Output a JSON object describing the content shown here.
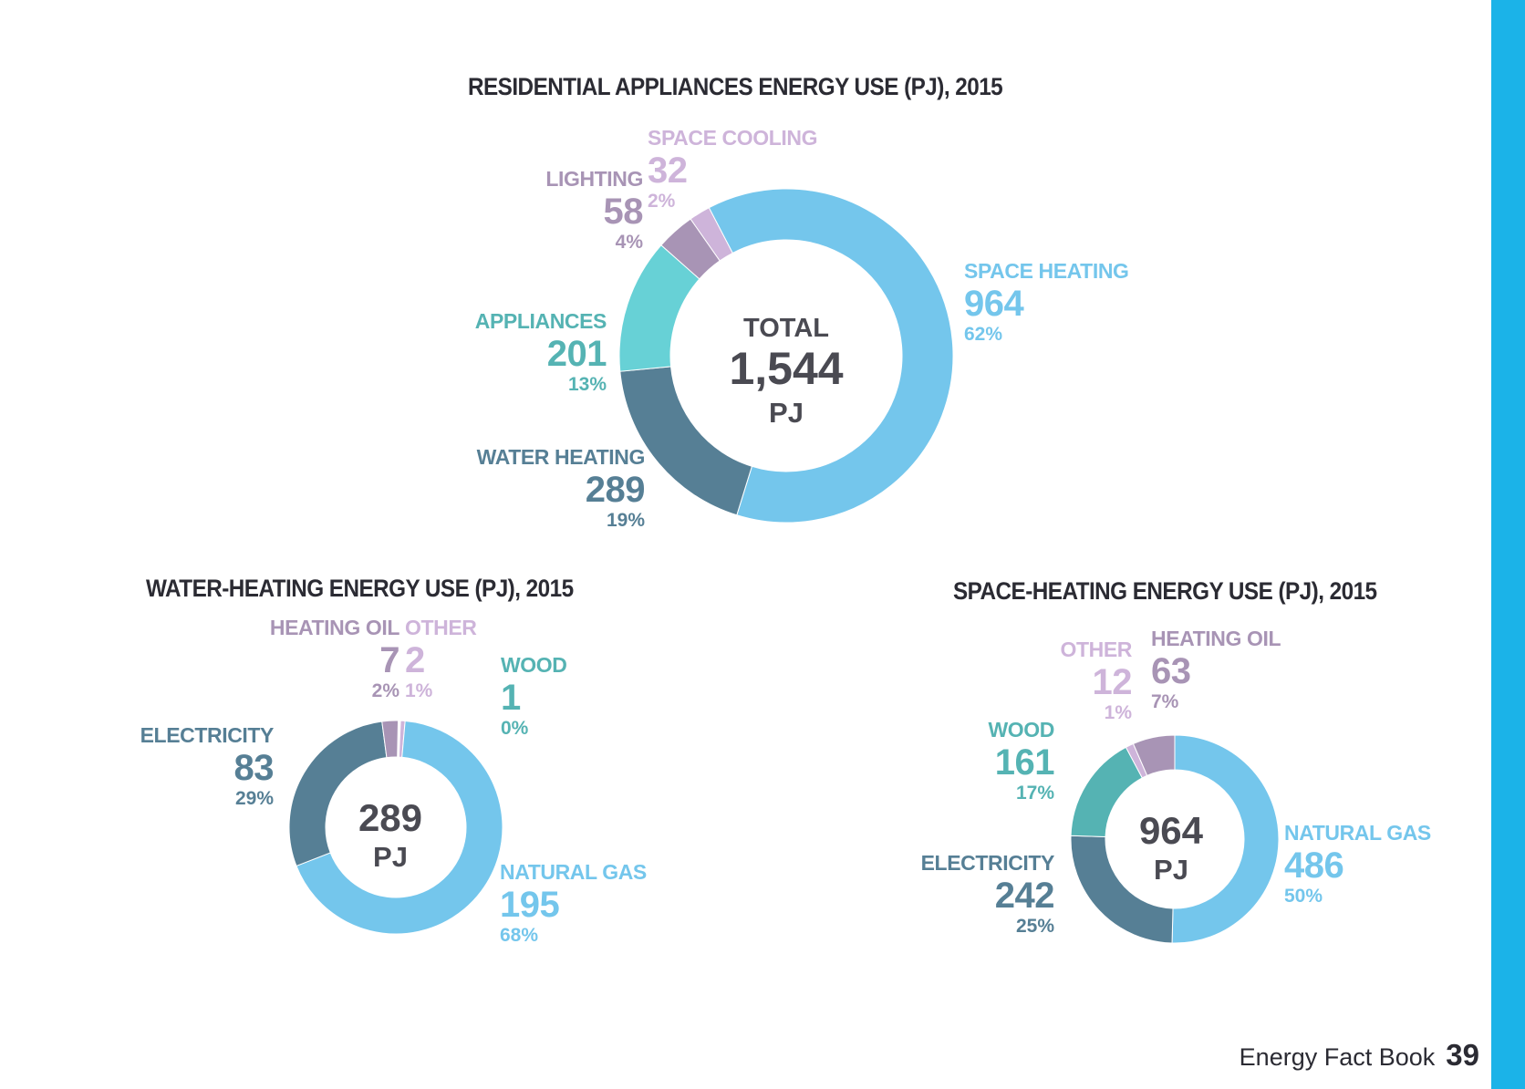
{
  "colors": {
    "sky": "#74c6ec",
    "teal_dark": "#567f95",
    "aqua": "#67d1d6",
    "mauve": "#a894b5",
    "lilac": "#ceb4da",
    "green_teal": "#55b3b3",
    "accent_bar": "#1bb3e8",
    "title": "#2b2b33"
  },
  "footer": {
    "book": "Energy Fact Book",
    "page": "39"
  },
  "chart_data": [
    {
      "type": "pie",
      "title": "RESIDENTIAL APPLIANCES ENERGY USE (PJ), 2015",
      "center": {
        "line1": "TOTAL",
        "line2": "1,544",
        "line3": "PJ"
      },
      "slices": [
        {
          "label": "SPACE HEATING",
          "value": 964,
          "pct": "62%",
          "color": "#74c6ec"
        },
        {
          "label": "WATER HEATING",
          "value": 289,
          "pct": "19%",
          "color": "#567f95"
        },
        {
          "label": "APPLIANCES",
          "value": 201,
          "pct": "13%",
          "color": "#67d1d6"
        },
        {
          "label": "LIGHTING",
          "value": 58,
          "pct": "4%",
          "color": "#a894b5"
        },
        {
          "label": "SPACE COOLING",
          "value": 32,
          "pct": "2%",
          "color": "#ceb4da"
        }
      ]
    },
    {
      "type": "pie",
      "title": "WATER-HEATING ENERGY USE (PJ), 2015",
      "center": {
        "line1": "289",
        "line2": "PJ"
      },
      "slices": [
        {
          "label": "NATURAL GAS",
          "value": 195,
          "pct": "68%",
          "color": "#74c6ec"
        },
        {
          "label": "ELECTRICITY",
          "value": 83,
          "pct": "29%",
          "color": "#567f95"
        },
        {
          "label": "HEATING OIL",
          "value": 7,
          "pct": "2%",
          "color": "#a894b5"
        },
        {
          "label": "OTHER",
          "value": 2,
          "pct": "1%",
          "color": "#ceb4da"
        },
        {
          "label": "WOOD",
          "value": 1,
          "pct": "0%",
          "color": "#55b3b3"
        }
      ]
    },
    {
      "type": "pie",
      "title": "SPACE-HEATING ENERGY USE (PJ), 2015",
      "center": {
        "line1": "964",
        "line2": "PJ"
      },
      "slices": [
        {
          "label": "NATURAL GAS",
          "value": 486,
          "pct": "50%",
          "color": "#74c6ec"
        },
        {
          "label": "ELECTRICITY",
          "value": 242,
          "pct": "25%",
          "color": "#567f95"
        },
        {
          "label": "WOOD",
          "value": 161,
          "pct": "17%",
          "color": "#55b3b3"
        },
        {
          "label": "OTHER",
          "value": 12,
          "pct": "1%",
          "color": "#ceb4da"
        },
        {
          "label": "HEATING OIL",
          "value": 63,
          "pct": "7%",
          "color": "#a894b5"
        }
      ]
    }
  ]
}
